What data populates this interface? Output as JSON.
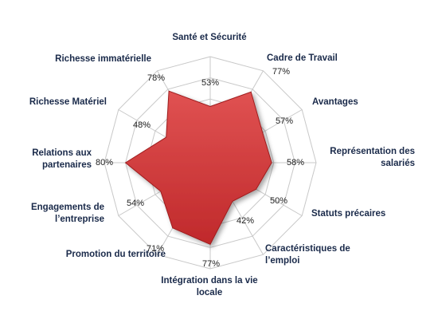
{
  "chart_data": {
    "type": "radar",
    "title": "",
    "grid": true,
    "legend": "none",
    "rmax": 100,
    "rings": [
      20,
      40,
      60,
      80,
      100
    ],
    "series_color": "#c0292b",
    "series_highlight": "#e05252",
    "grid_color": "#c8c8c8",
    "categories": [
      [
        "Santé et Sécurité"
      ],
      [
        "Cadre de Travail"
      ],
      [
        "Avantages"
      ],
      [
        "Représentation des",
        "salariés"
      ],
      [
        "Statuts précaires"
      ],
      [
        "Caractéristiques de",
        "l’emploi"
      ],
      [
        "Intégration dans la vie",
        "locale"
      ],
      [
        "Promotion du territoire"
      ],
      [
        "Engagements de",
        "l’entreprise"
      ],
      [
        "Relations aux",
        "partenaires"
      ],
      [
        "Richesse Matériel"
      ],
      [
        "Richesse immatérielle"
      ]
    ],
    "values": [
      53,
      77,
      57,
      58,
      50,
      42,
      77,
      71,
      54,
      80,
      48,
      78
    ],
    "value_labels": [
      "53%",
      "77%",
      "57%",
      "58%",
      "50%",
      "42%",
      "77%",
      "71%",
      "54%",
      "80%",
      "48%",
      "78%"
    ]
  }
}
